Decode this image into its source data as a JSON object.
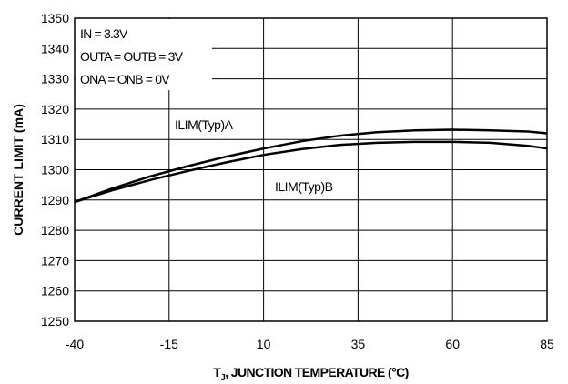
{
  "chart_data": {
    "type": "line",
    "xlabel_main": "T",
    "xlabel_sub": "J",
    "xlabel_rest": ", JUNCTION TEMPERATURE (°C)",
    "ylabel": "CURRENT LIMIT (mA)",
    "xlim": [
      -40,
      85
    ],
    "ylim": [
      1250,
      1350
    ],
    "x_ticks": [
      "-40",
      "-15",
      "10",
      "35",
      "60",
      "85"
    ],
    "y_ticks": [
      "1250",
      "1260",
      "1270",
      "1280",
      "1290",
      "1300",
      "1310",
      "1320",
      "1330",
      "1340",
      "1350"
    ],
    "grid": true,
    "conditions": [
      "IN = 3.3V",
      "OUTA = OUTB = 3V",
      "ONA = ONB = 0V"
    ],
    "series": [
      {
        "name": "ILIM(Typ)A",
        "x": [
          -40,
          -30,
          -20,
          -10,
          0,
          10,
          20,
          30,
          40,
          50,
          60,
          70,
          80,
          85
        ],
        "y": [
          1289.3,
          1293.8,
          1297.8,
          1301.2,
          1304.3,
          1307.0,
          1309.4,
          1311.2,
          1312.4,
          1313.0,
          1313.2,
          1313.0,
          1312.6,
          1312.0
        ]
      },
      {
        "name": "ILIM(Typ)B",
        "x": [
          -40,
          -30,
          -20,
          -10,
          0,
          10,
          20,
          30,
          40,
          50,
          60,
          70,
          80,
          85
        ],
        "y": [
          1289.3,
          1293.2,
          1296.6,
          1299.6,
          1302.4,
          1304.9,
          1306.8,
          1308.2,
          1308.9,
          1309.2,
          1309.2,
          1308.9,
          1307.9,
          1307.0
        ]
      }
    ]
  }
}
